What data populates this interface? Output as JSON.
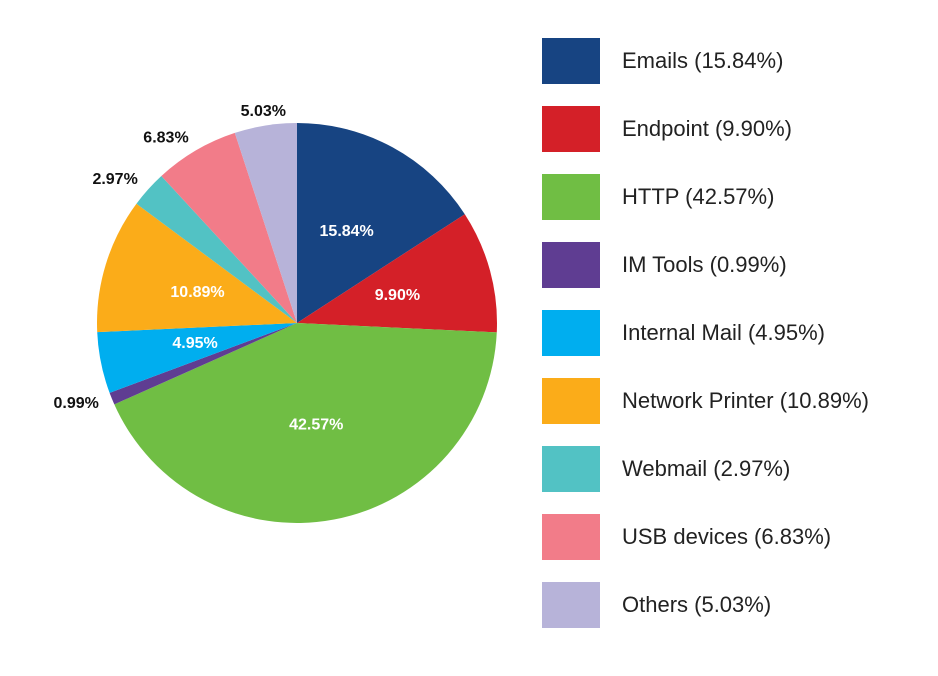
{
  "chart_data": {
    "type": "pie",
    "title": "",
    "slices": [
      {
        "name": "Emails",
        "value": 15.84,
        "label": "15.84%",
        "legend": "Emails (15.84%)",
        "color": "#174482",
        "label_inside": true
      },
      {
        "name": "Endpoint",
        "value": 9.9,
        "label": "9.90%",
        "legend": "Endpoint (9.90%)",
        "color": "#d42028",
        "label_inside": true
      },
      {
        "name": "HTTP",
        "value": 42.57,
        "label": "42.57%",
        "legend": "HTTP (42.57%)",
        "color": "#70be44",
        "label_inside": true
      },
      {
        "name": "IM Tools",
        "value": 0.99,
        "label": "0.99%",
        "legend": "IM Tools (0.99%)",
        "color": "#5f3d92",
        "label_inside": false
      },
      {
        "name": "Internal Mail",
        "value": 4.95,
        "label": "4.95%",
        "legend": "Internal Mail (4.95%)",
        "color": "#00aeef",
        "label_inside": true
      },
      {
        "name": "Network Printer",
        "value": 10.89,
        "label": "10.89%",
        "legend": "Network Printer (10.89%)",
        "color": "#fbac19",
        "label_inside": true
      },
      {
        "name": "Webmail",
        "value": 2.97,
        "label": "2.97%",
        "legend": "Webmail (2.97%)",
        "color": "#52c2c4",
        "label_inside": false
      },
      {
        "name": "USB devices",
        "value": 6.83,
        "label": "6.83%",
        "legend": "USB devices (6.83%)",
        "color": "#f27c89",
        "label_inside": false
      },
      {
        "name": "Others",
        "value": 5.03,
        "label": "5.03%",
        "legend": "Others (5.03%)",
        "color": "#b7b3d9",
        "label_inside": false
      }
    ],
    "start_angle": "12 o'clock",
    "direction": "clockwise",
    "legend_position": "right"
  }
}
